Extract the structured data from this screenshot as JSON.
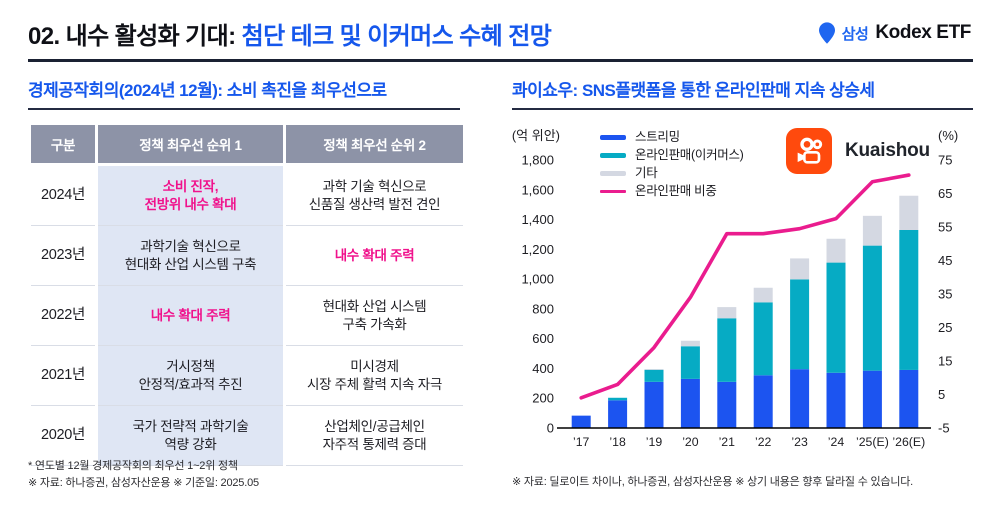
{
  "header": {
    "title_prefix": "02. 내수 활성화 기대: ",
    "title_highlight": "첨단 테크 및 이커머스 수혜 전망",
    "brand": {
      "samsung": "삼성",
      "kodex": "Kodex ETF"
    }
  },
  "left_panel": {
    "section_title": "경제공작회의(2024년 12월): 소비 촉진을 최우선으로",
    "table": {
      "headers": [
        "구분",
        "정책 최우선 순위 1",
        "정책 최우선 순위 2"
      ],
      "rows": [
        {
          "year": "2024년",
          "p1_lines": [
            "소비 진작,",
            "전방위 내수 확대"
          ],
          "p1_pink": true,
          "p2_lines": [
            "과학 기술 혁신으로",
            "신품질 생산력 발전 견인"
          ],
          "p2_pink": false
        },
        {
          "year": "2023년",
          "p1_lines": [
            "과학기술 혁신으로",
            "현대화 산업 시스템 구축"
          ],
          "p1_pink": false,
          "p2_lines": [
            "내수 확대 주력"
          ],
          "p2_pink": true
        },
        {
          "year": "2022년",
          "p1_lines": [
            "내수 확대 주력"
          ],
          "p1_pink": true,
          "p2_lines": [
            "현대화 산업 시스템",
            "구축 가속화"
          ],
          "p2_pink": false
        },
        {
          "year": "2021년",
          "p1_lines": [
            "거시정책",
            "안정적/효과적 추진"
          ],
          "p1_pink": false,
          "p2_lines": [
            "미시경제",
            "시장 주체 활력 지속 자극"
          ],
          "p2_pink": false
        },
        {
          "year": "2020년",
          "p1_lines": [
            "국가 전략적 과학기술",
            "역량 강화"
          ],
          "p1_pink": false,
          "p2_lines": [
            "산업체인/공급체인",
            "자주적 통제력 증대"
          ],
          "p2_pink": false
        }
      ]
    },
    "footnote1": "* 연도별 12월 경제공작회의 최우선 1~2위 정책",
    "footnote2": "※ 자료: 하나증권, 삼성자산운용 ※ 기준일: 2025.05"
  },
  "right_panel": {
    "section_title": "콰이쇼우: SNS플랫폼을 통한 온라인판매 지속 상승세",
    "brand_label": "Kuaishou",
    "footnote": "※ 자료: 딜로이트 차이나, 하나증권, 삼성자산운용 ※ 상기 내용은 향후 달라질 수 있습니다."
  },
  "chart_data": {
    "type": "bar",
    "subtype": "stacked-bars-with-line",
    "title": "콰이쇼우 매출 구성 및 온라인판매 비중",
    "categories": [
      "’17",
      "’18",
      "’19",
      "’20",
      "’21",
      "’22",
      "’23",
      "’24",
      "’25(E)",
      "’26(E)"
    ],
    "left_axis": {
      "label": "(억 위안)",
      "min": 0,
      "max": 1800,
      "step": 200
    },
    "right_axis": {
      "label": "(%)",
      "min": -5,
      "max": 75,
      "step": 10
    },
    "grid": false,
    "legend_position": "top-inside",
    "series": [
      {
        "name": "스트리밍",
        "type": "bar",
        "color": "#1c54f0",
        "values": [
          83,
          186,
          310,
          330,
          310,
          354,
          395,
          371,
          385,
          390
        ]
      },
      {
        "name": "온라인판매(이커머스)",
        "type": "bar",
        "color": "#06abc4",
        "values": [
          0,
          17,
          81,
          219,
          427,
          490,
          603,
          740,
          840,
          940
        ]
      },
      {
        "name": "기타",
        "type": "bar",
        "color": "#d4d8e2",
        "values": [
          0,
          0,
          5,
          37,
          75,
          98,
          141,
          160,
          200,
          230
        ]
      },
      {
        "name": "온라인판매 비중",
        "type": "line",
        "axis": "right",
        "color": "#ea1c8e",
        "values": [
          4,
          8,
          19,
          34,
          53,
          53,
          54.5,
          57.5,
          68.5,
          70.5
        ]
      }
    ]
  }
}
